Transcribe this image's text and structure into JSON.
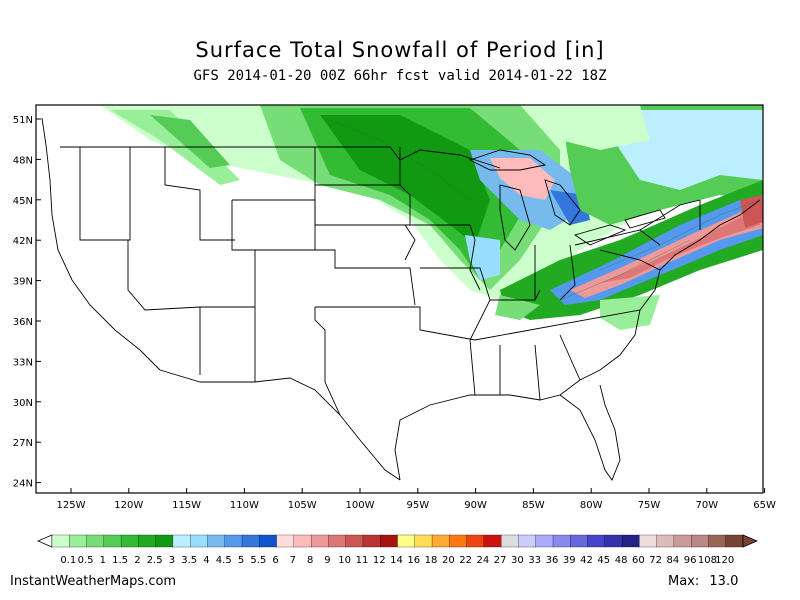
{
  "title": "Surface Total Snowfall of Period [in]",
  "subtitle": "GFS 2014-01-20 00Z 66hr fcst valid 2014-01-22 18Z",
  "lat_labels": [
    "51N",
    "48N",
    "45N",
    "42N",
    "39N",
    "36N",
    "33N",
    "30N",
    "27N",
    "24N"
  ],
  "lon_labels": [
    "125W",
    "120W",
    "115W",
    "110W",
    "105W",
    "100W",
    "95W",
    "90W",
    "85W",
    "80W",
    "75W",
    "70W",
    "65W"
  ],
  "legend": {
    "labels": [
      "0.1",
      "0.5",
      "1",
      "1.5",
      "2",
      "2.5",
      "3",
      "3.5",
      "4",
      "4.5",
      "5",
      "5.5",
      "6",
      "7",
      "8",
      "9",
      "10",
      "11",
      "12",
      "14",
      "16",
      "18",
      "20",
      "22",
      "24",
      "27",
      "30",
      "33",
      "36",
      "39",
      "42",
      "45",
      "48",
      "60",
      "72",
      "84",
      "96",
      "108",
      "120"
    ],
    "colors": [
      "#ccffcc",
      "#99ee99",
      "#77dd77",
      "#55cc55",
      "#33bb33",
      "#22aa22",
      "#119911",
      "#bbeeff",
      "#99ddff",
      "#77bbee",
      "#5599ee",
      "#3377dd",
      "#1155cc",
      "#ffdddd",
      "#ffbbbb",
      "#ee9999",
      "#dd7777",
      "#cc5555",
      "#bb3333",
      "#aa1111",
      "#ffff88",
      "#ffdd55",
      "#ffaa33",
      "#ff7711",
      "#ee4411",
      "#cc1111",
      "#dddddd",
      "#ccccff",
      "#aaaaff",
      "#8888ee",
      "#6666dd",
      "#4444cc",
      "#3333aa",
      "#222288",
      "#eedddd",
      "#ddbbbb",
      "#cc9999",
      "#bb8888",
      "#996655",
      "#774433"
    ]
  },
  "footer": {
    "site": "InstantWeatherMaps.com",
    "max_label": "Max:",
    "max_value": "13.0"
  }
}
